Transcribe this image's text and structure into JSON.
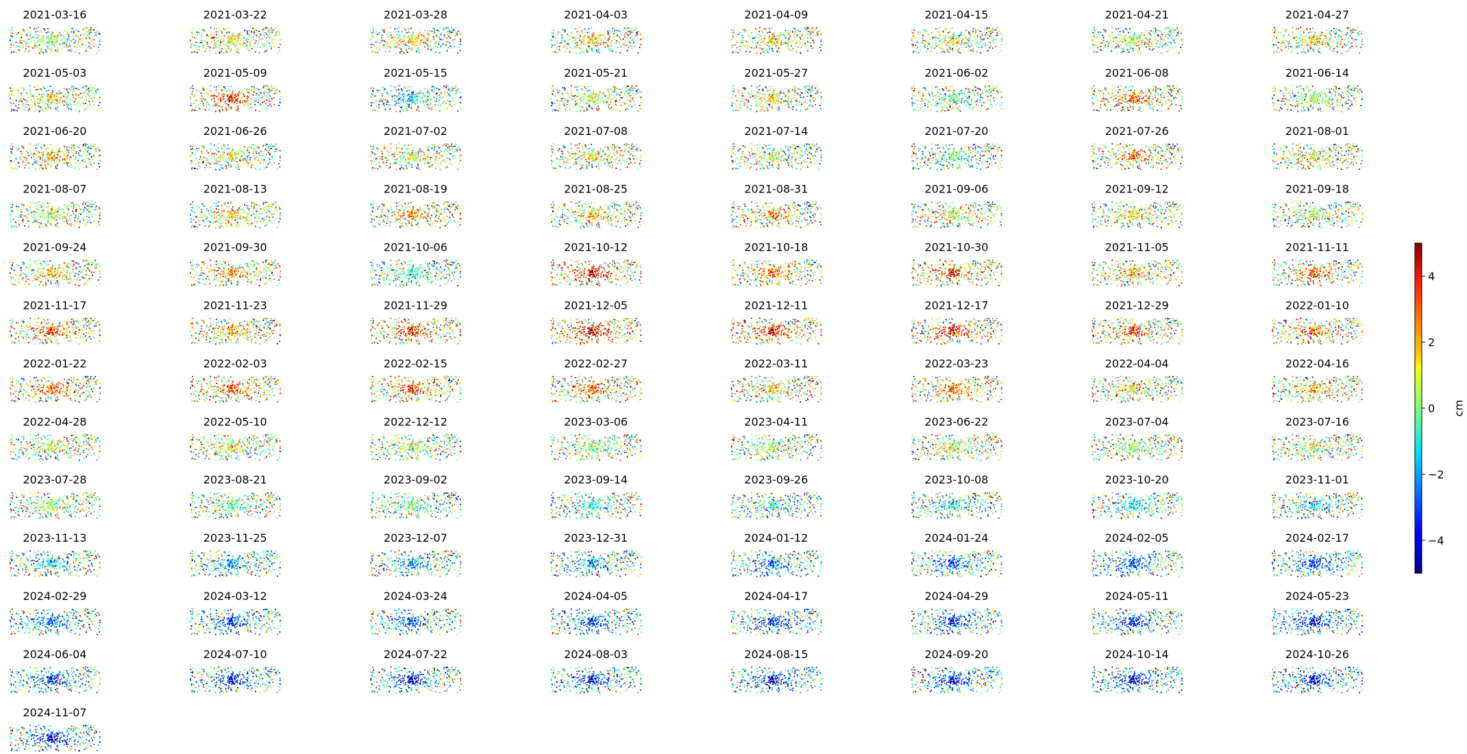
{
  "chart_data": {
    "type": "scatter",
    "subplots": [
      {
        "date": "2021-03-16",
        "mean_cm": 0.3
      },
      {
        "date": "2021-03-22",
        "mean_cm": 0.6
      },
      {
        "date": "2021-03-28",
        "mean_cm": 0.9
      },
      {
        "date": "2021-04-03",
        "mean_cm": 1.2
      },
      {
        "date": "2021-04-09",
        "mean_cm": 0.9
      },
      {
        "date": "2021-04-15",
        "mean_cm": 0.6
      },
      {
        "date": "2021-04-21",
        "mean_cm": 0.6
      },
      {
        "date": "2021-04-27",
        "mean_cm": 0.9
      },
      {
        "date": "2021-05-03",
        "mean_cm": 0.9
      },
      {
        "date": "2021-05-09",
        "mean_cm": 2.4
      },
      {
        "date": "2021-05-15",
        "mean_cm": -1.2
      },
      {
        "date": "2021-05-21",
        "mean_cm": 0.3
      },
      {
        "date": "2021-05-27",
        "mean_cm": 0.9
      },
      {
        "date": "2021-06-02",
        "mean_cm": -0.3
      },
      {
        "date": "2021-06-08",
        "mean_cm": 2.1
      },
      {
        "date": "2021-06-14",
        "mean_cm": 0.3
      },
      {
        "date": "2021-06-20",
        "mean_cm": 1.2
      },
      {
        "date": "2021-06-26",
        "mean_cm": 0.9
      },
      {
        "date": "2021-07-02",
        "mean_cm": 0.6
      },
      {
        "date": "2021-07-08",
        "mean_cm": 0.9
      },
      {
        "date": "2021-07-14",
        "mean_cm": 0.3
      },
      {
        "date": "2021-07-20",
        "mean_cm": -0.3
      },
      {
        "date": "2021-07-26",
        "mean_cm": 1.8
      },
      {
        "date": "2021-08-01",
        "mean_cm": 0.6
      },
      {
        "date": "2021-08-07",
        "mean_cm": 0.3
      },
      {
        "date": "2021-08-13",
        "mean_cm": 1.2
      },
      {
        "date": "2021-08-19",
        "mean_cm": 1.5
      },
      {
        "date": "2021-08-25",
        "mean_cm": 1.2
      },
      {
        "date": "2021-08-31",
        "mean_cm": 1.5
      },
      {
        "date": "2021-09-06",
        "mean_cm": 0.6
      },
      {
        "date": "2021-09-12",
        "mean_cm": 0.9
      },
      {
        "date": "2021-09-18",
        "mean_cm": 0.3
      },
      {
        "date": "2021-09-24",
        "mean_cm": 1.2
      },
      {
        "date": "2021-09-30",
        "mean_cm": 1.5
      },
      {
        "date": "2021-10-06",
        "mean_cm": -0.6
      },
      {
        "date": "2021-10-12",
        "mean_cm": 2.7
      },
      {
        "date": "2021-10-18",
        "mean_cm": 1.8
      },
      {
        "date": "2021-10-30",
        "mean_cm": 2.4
      },
      {
        "date": "2021-11-05",
        "mean_cm": 1.5
      },
      {
        "date": "2021-11-11",
        "mean_cm": 2.1
      },
      {
        "date": "2021-11-17",
        "mean_cm": 2.4
      },
      {
        "date": "2021-11-23",
        "mean_cm": 1.5
      },
      {
        "date": "2021-11-29",
        "mean_cm": 2.7
      },
      {
        "date": "2021-12-05",
        "mean_cm": 3.0
      },
      {
        "date": "2021-12-11",
        "mean_cm": 3.0
      },
      {
        "date": "2021-12-17",
        "mean_cm": 2.7
      },
      {
        "date": "2021-12-29",
        "mean_cm": 2.4
      },
      {
        "date": "2022-01-10",
        "mean_cm": 1.8
      },
      {
        "date": "2022-01-22",
        "mean_cm": 1.8
      },
      {
        "date": "2022-02-03",
        "mean_cm": 2.1
      },
      {
        "date": "2022-02-15",
        "mean_cm": 2.4
      },
      {
        "date": "2022-02-27",
        "mean_cm": 1.8
      },
      {
        "date": "2022-03-11",
        "mean_cm": 1.2
      },
      {
        "date": "2022-03-23",
        "mean_cm": 2.1
      },
      {
        "date": "2022-04-04",
        "mean_cm": 0.9
      },
      {
        "date": "2022-04-16",
        "mean_cm": 1.2
      },
      {
        "date": "2022-04-28",
        "mean_cm": 0.6
      },
      {
        "date": "2022-05-10",
        "mean_cm": 0.9
      },
      {
        "date": "2022-12-12",
        "mean_cm": 0.6
      },
      {
        "date": "2023-03-06",
        "mean_cm": 0.3
      },
      {
        "date": "2023-04-11",
        "mean_cm": 0.3
      },
      {
        "date": "2023-06-22",
        "mean_cm": 0.6
      },
      {
        "date": "2023-07-04",
        "mean_cm": 0.3
      },
      {
        "date": "2023-07-16",
        "mean_cm": 0.3
      },
      {
        "date": "2023-07-28",
        "mean_cm": 0.3
      },
      {
        "date": "2023-08-21",
        "mean_cm": 0.0
      },
      {
        "date": "2023-09-02",
        "mean_cm": -0.3
      },
      {
        "date": "2023-09-14",
        "mean_cm": -0.6
      },
      {
        "date": "2023-09-26",
        "mean_cm": -0.6
      },
      {
        "date": "2023-10-08",
        "mean_cm": -0.9
      },
      {
        "date": "2023-10-20",
        "mean_cm": -0.9
      },
      {
        "date": "2023-11-01",
        "mean_cm": -1.2
      },
      {
        "date": "2023-11-13",
        "mean_cm": -1.2
      },
      {
        "date": "2023-11-25",
        "mean_cm": -1.5
      },
      {
        "date": "2023-12-07",
        "mean_cm": -1.5
      },
      {
        "date": "2023-12-31",
        "mean_cm": -1.8
      },
      {
        "date": "2024-01-12",
        "mean_cm": -1.8
      },
      {
        "date": "2024-01-24",
        "mean_cm": -2.1
      },
      {
        "date": "2024-02-05",
        "mean_cm": -2.1
      },
      {
        "date": "2024-02-17",
        "mean_cm": -2.4
      },
      {
        "date": "2024-02-29",
        "mean_cm": -2.1
      },
      {
        "date": "2024-03-12",
        "mean_cm": -2.4
      },
      {
        "date": "2024-03-24",
        "mean_cm": -2.1
      },
      {
        "date": "2024-04-05",
        "mean_cm": -2.4
      },
      {
        "date": "2024-04-17",
        "mean_cm": -2.4
      },
      {
        "date": "2024-04-29",
        "mean_cm": -2.7
      },
      {
        "date": "2024-05-11",
        "mean_cm": -2.4
      },
      {
        "date": "2024-05-23",
        "mean_cm": -2.7
      },
      {
        "date": "2024-06-04",
        "mean_cm": -2.7
      },
      {
        "date": "2024-07-10",
        "mean_cm": -2.7
      },
      {
        "date": "2024-07-22",
        "mean_cm": -3.0
      },
      {
        "date": "2024-08-03",
        "mean_cm": -2.7
      },
      {
        "date": "2024-08-15",
        "mean_cm": -3.0
      },
      {
        "date": "2024-09-20",
        "mean_cm": -3.0
      },
      {
        "date": "2024-10-14",
        "mean_cm": -3.0
      },
      {
        "date": "2024-10-26",
        "mean_cm": -3.0
      },
      {
        "date": "2024-11-07",
        "mean_cm": -3.0
      }
    ],
    "colorbar": {
      "label": "cm",
      "colormap": "jet",
      "range": [
        -5,
        5
      ],
      "ticks": [
        -4,
        -2,
        0,
        2,
        4
      ],
      "tick_labels": [
        "−4",
        "−2",
        "0",
        "2",
        "4"
      ]
    },
    "axes_visible": false,
    "grid": false
  }
}
